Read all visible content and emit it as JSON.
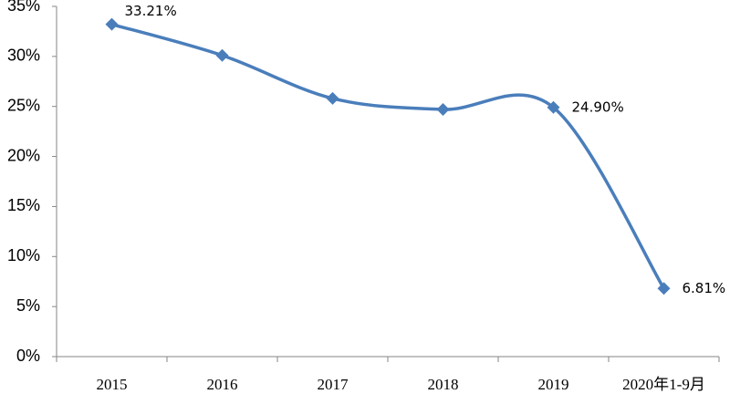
{
  "chart_data": {
    "type": "line",
    "categories": [
      "2015",
      "2016",
      "2017",
      "2018",
      "2019",
      "2020年1-9月"
    ],
    "series": [
      {
        "color": "#4a7ebb",
        "values": [
          33.21,
          30.1,
          25.8,
          24.7,
          24.9,
          6.81
        ],
        "value_labels": [
          "33.21%",
          null,
          null,
          null,
          "24.90%",
          "6.81%"
        ]
      }
    ],
    "ylim": [
      0,
      35
    ],
    "yticks": [
      {
        "value": 0,
        "label": "0%"
      },
      {
        "value": 5,
        "label": "5%"
      },
      {
        "value": 10,
        "label": "10%"
      },
      {
        "value": 15,
        "label": "15%"
      },
      {
        "value": 20,
        "label": "20%"
      },
      {
        "value": 25,
        "label": "25%"
      },
      {
        "value": 30,
        "label": "30%"
      },
      {
        "value": 35,
        "label": "35%"
      }
    ],
    "smooth": true,
    "grid": false
  }
}
